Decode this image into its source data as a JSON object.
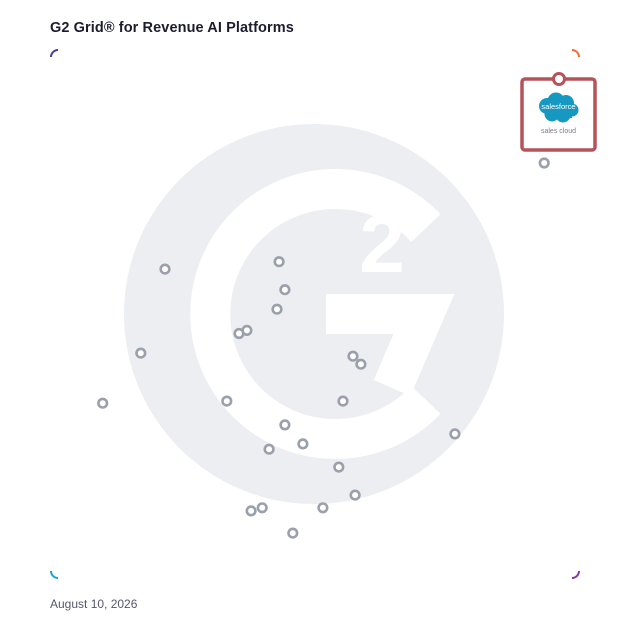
{
  "title": "G2 Grid® for Revenue AI Platforms",
  "date": "August 10, 2026",
  "featured": {
    "brand": "salesforce",
    "product": "sales cloud",
    "brand_color": "#1798c1",
    "highlight_color": "#b4545a"
  },
  "colors": {
    "border_top_left": "#4b3aa0",
    "border_top_right": "#f06a3c",
    "border_bottom_left": "#1f9fe0",
    "border_bottom_right": "#7a3aa8",
    "marker": "#9aa0ac",
    "watermark": "#eceef1"
  },
  "chart_data": {
    "type": "scatter",
    "xlim": [
      0,
      100
    ],
    "ylim": [
      0,
      100
    ],
    "grid": "quadrants at midpoint",
    "points": [
      {
        "x": 96.0,
        "y": 94.5,
        "featured": true
      },
      {
        "x": 93.4,
        "y": 78.6
      },
      {
        "x": 21.6,
        "y": 58.5
      },
      {
        "x": 43.2,
        "y": 59.9
      },
      {
        "x": 44.3,
        "y": 54.6
      },
      {
        "x": 42.8,
        "y": 50.9
      },
      {
        "x": 37.1,
        "y": 46.9
      },
      {
        "x": 35.6,
        "y": 46.3
      },
      {
        "x": 17.0,
        "y": 42.6
      },
      {
        "x": 57.2,
        "y": 42.0
      },
      {
        "x": 58.7,
        "y": 40.5
      },
      {
        "x": 9.8,
        "y": 33.1
      },
      {
        "x": 33.3,
        "y": 33.5
      },
      {
        "x": 55.3,
        "y": 33.5
      },
      {
        "x": 44.3,
        "y": 29.0
      },
      {
        "x": 76.5,
        "y": 27.3
      },
      {
        "x": 47.7,
        "y": 25.4
      },
      {
        "x": 41.3,
        "y": 24.4
      },
      {
        "x": 54.5,
        "y": 21.0
      },
      {
        "x": 57.6,
        "y": 15.7
      },
      {
        "x": 40.0,
        "y": 13.3
      },
      {
        "x": 37.9,
        "y": 12.7
      },
      {
        "x": 51.5,
        "y": 13.3
      },
      {
        "x": 45.8,
        "y": 8.5
      }
    ]
  }
}
